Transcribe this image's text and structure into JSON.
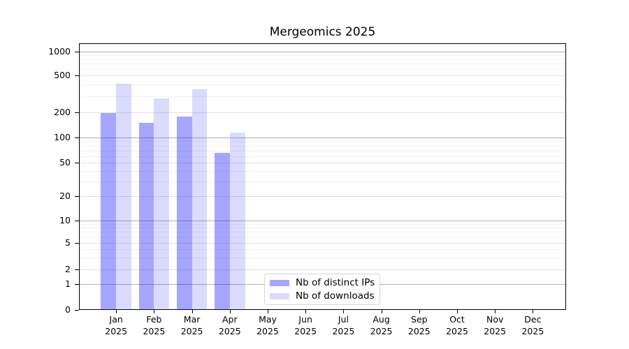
{
  "title": "Mergeomics 2025",
  "legend": {
    "items": [
      {
        "id": "distinct-ips",
        "label": "Nb of distinct IPs"
      },
      {
        "id": "downloads",
        "label": "Nb of downloads"
      }
    ]
  },
  "colors": {
    "bar_distinct_ips": "rgba(0,0,255,0.35)",
    "bar_downloads": "rgba(0,0,255,0.14)",
    "grid_major": "#b0b0b0",
    "grid_labeled": "#e1e1e1",
    "grid_minor": "#f2f2f2",
    "axis": "#000000",
    "legend_border": "#d5d5d5",
    "background": "#ffffff"
  },
  "x_axis": {
    "months": [
      "Jan",
      "Feb",
      "Mar",
      "Apr",
      "May",
      "Jun",
      "Jul",
      "Aug",
      "Sep",
      "Oct",
      "Nov",
      "Dec"
    ],
    "year": "2025"
  },
  "y_axis": {
    "tick_labels": [
      "0",
      "1",
      "2",
      "5",
      "10",
      "20",
      "50",
      "100",
      "200",
      "500",
      "1000"
    ]
  },
  "chart_data": {
    "type": "bar",
    "title": "Mergeomics 2025",
    "categories": [
      "Jan 2025",
      "Feb 2025",
      "Mar 2025",
      "Apr 2025",
      "May 2025",
      "Jun 2025",
      "Jul 2025",
      "Aug 2025",
      "Sep 2025",
      "Oct 2025",
      "Nov 2025",
      "Dec 2025"
    ],
    "series": [
      {
        "name": "Nb of distinct IPs",
        "values": [
          195,
          150,
          178,
          65,
          null,
          null,
          null,
          null,
          null,
          null,
          null,
          null
        ]
      },
      {
        "name": "Nb of downloads",
        "values": [
          405,
          285,
          355,
          114,
          null,
          null,
          null,
          null,
          null,
          null,
          null,
          null
        ]
      }
    ],
    "y_scale": "log-like with linear segment below 1",
    "y_ticks": [
      0,
      1,
      2,
      5,
      10,
      20,
      50,
      100,
      200,
      500,
      1000
    ],
    "ylim": [
      0,
      1000
    ],
    "grid": "horizontal",
    "legend_position": "inside-bottom-center"
  }
}
